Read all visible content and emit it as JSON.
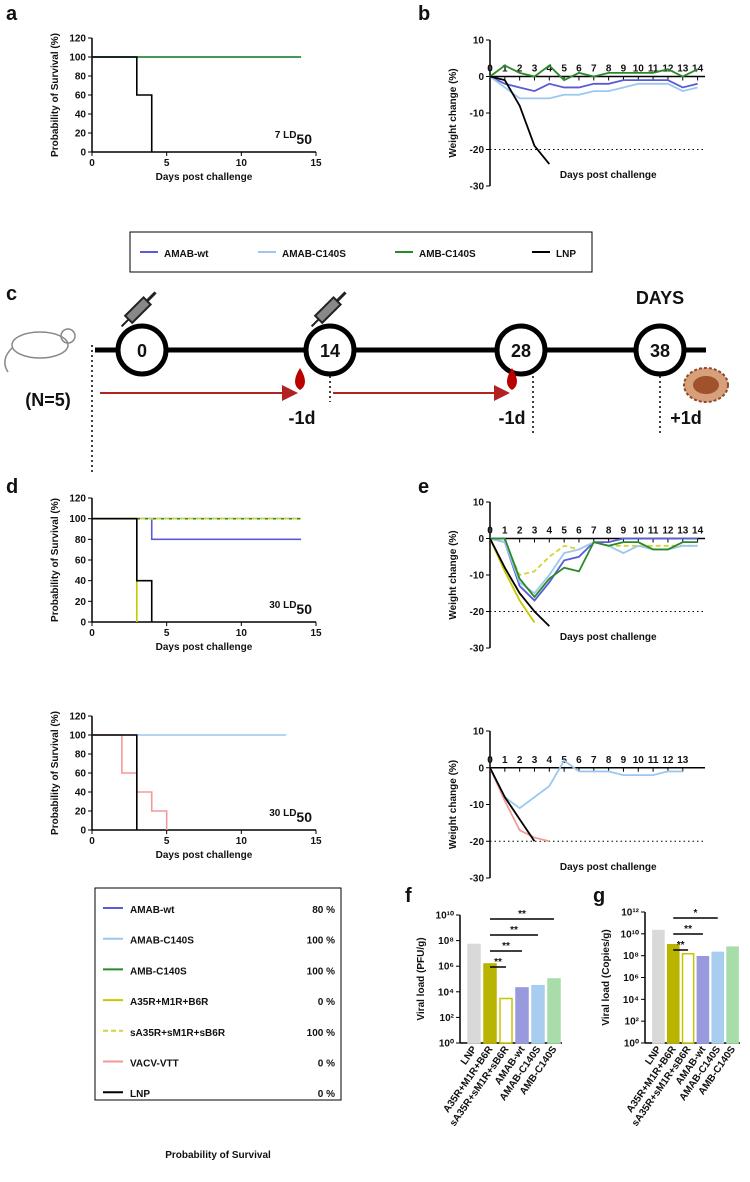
{
  "panel_labels": [
    "a",
    "b",
    "c",
    "d",
    "e",
    "f",
    "g"
  ],
  "chart_data": [
    {
      "type": "line",
      "step": true,
      "xlabel": "Days post challenge",
      "ylabel": "Probability of Survival (%)",
      "annotation": {
        "text": "7 LD",
        "sub": "50"
      },
      "x": [
        0,
        1,
        2,
        3,
        4,
        5,
        6,
        7,
        8,
        9,
        10,
        11,
        12,
        13,
        14
      ],
      "xlim": [
        0,
        15
      ],
      "xticks": [
        0,
        5,
        10,
        15
      ],
      "ylim": [
        0,
        120
      ],
      "yticks": [
        0,
        20,
        40,
        60,
        80,
        100,
        120
      ],
      "series": [
        {
          "name": "AMAB-wt",
          "color": "#5b5bd6",
          "values": [
            100,
            100,
            100,
            100,
            100,
            100,
            100,
            100,
            100,
            100,
            100,
            100,
            100,
            100,
            100
          ]
        },
        {
          "name": "AMAB-C140S",
          "color": "#9cc8f0",
          "values": [
            100,
            100,
            100,
            100,
            100,
            100,
            100,
            100,
            100,
            100,
            100,
            100,
            100,
            100,
            100
          ]
        },
        {
          "name": "AMB-C140S",
          "color": "#2a8a2a",
          "values": [
            100,
            100,
            100,
            100,
            100,
            100,
            100,
            100,
            100,
            100,
            100,
            100,
            100,
            100,
            100
          ]
        },
        {
          "name": "LNP",
          "color": "#000000",
          "values": [
            100,
            100,
            100,
            60,
            0,
            null,
            null,
            null,
            null,
            null,
            null,
            null,
            null,
            null,
            null
          ]
        }
      ]
    },
    {
      "type": "line",
      "xlabel": "Days post challenge",
      "ylabel": "Weight change (%)",
      "hline": -20,
      "x": [
        0,
        1,
        2,
        3,
        4,
        5,
        6,
        7,
        8,
        9,
        10,
        11,
        12,
        13,
        14
      ],
      "xlim": [
        0,
        14.5
      ],
      "xticks": [
        0,
        1,
        2,
        3,
        4,
        5,
        6,
        7,
        8,
        9,
        10,
        11,
        12,
        13,
        14
      ],
      "ylim": [
        -30,
        10
      ],
      "yticks": [
        -30,
        -20,
        -10,
        0,
        10
      ],
      "series": [
        {
          "name": "AMAB-wt",
          "color": "#5b5bd6",
          "values": [
            0,
            -2,
            -3,
            -4,
            -2,
            -3,
            -3,
            -2,
            -2,
            -1,
            -1,
            -1,
            -1,
            -3,
            -2
          ]
        },
        {
          "name": "AMAB-C140S",
          "color": "#9cc8f0",
          "values": [
            0,
            -3,
            -6,
            -6,
            -6,
            -5,
            -5,
            -4,
            -4,
            -3,
            -2,
            -2,
            -2,
            -4,
            -3
          ]
        },
        {
          "name": "AMB-C140S",
          "color": "#2a8a2a",
          "values": [
            0,
            3,
            1,
            0,
            3,
            -1,
            1,
            0,
            1,
            1,
            1,
            1,
            2,
            0,
            2
          ]
        },
        {
          "name": "LNP",
          "color": "#000000",
          "values": [
            0,
            -1,
            -8,
            -19,
            -24,
            null,
            null,
            null,
            null,
            null,
            null,
            null,
            null,
            null,
            null
          ]
        }
      ]
    },
    {
      "type": "line",
      "step": true,
      "xlabel": "Days post challenge",
      "ylabel": "Probability of Survival (%)",
      "annotation": {
        "text": "30 LD",
        "sub": "50"
      },
      "x": [
        0,
        1,
        2,
        3,
        4,
        5,
        6,
        7,
        8,
        9,
        10,
        11,
        12,
        13,
        14
      ],
      "xlim": [
        0,
        15
      ],
      "xticks": [
        0,
        5,
        10,
        15
      ],
      "ylim": [
        0,
        120
      ],
      "yticks": [
        0,
        20,
        40,
        60,
        80,
        100,
        120
      ],
      "series": [
        {
          "name": "AMAB-wt",
          "color": "#5b5bd6",
          "values": [
            100,
            100,
            100,
            100,
            80,
            80,
            80,
            80,
            80,
            80,
            80,
            80,
            80,
            80,
            80
          ]
        },
        {
          "name": "AMAB-C140S",
          "color": "#9cc8f0",
          "values": [
            100,
            100,
            100,
            100,
            100,
            100,
            100,
            100,
            100,
            100,
            100,
            100,
            100,
            100,
            100
          ]
        },
        {
          "name": "AMB-C140S",
          "color": "#2a8a2a",
          "values": [
            100,
            100,
            100,
            100,
            100,
            100,
            100,
            100,
            100,
            100,
            100,
            100,
            100,
            100,
            100
          ]
        },
        {
          "name": "sA35R+sM1R+sB6R",
          "color": "#d4d43a",
          "dash": true,
          "values": [
            100,
            100,
            100,
            100,
            100,
            100,
            100,
            100,
            100,
            100,
            100,
            100,
            100,
            100,
            100
          ]
        },
        {
          "name": "A35R+M1R+B6R",
          "color": "#c8c800",
          "values": [
            100,
            100,
            100,
            0,
            null,
            null,
            null,
            null,
            null,
            null,
            null,
            null,
            null,
            null,
            null
          ]
        },
        {
          "name": "LNP",
          "color": "#000000",
          "values": [
            100,
            100,
            100,
            40,
            0,
            null,
            null,
            null,
            null,
            null,
            null,
            null,
            null,
            null,
            null
          ]
        }
      ]
    },
    {
      "type": "line",
      "step": true,
      "xlabel": "Days post challenge",
      "ylabel": "Probability of Survival (%)",
      "annotation": {
        "text": "30 LD",
        "sub": "50"
      },
      "x": [
        0,
        1,
        2,
        3,
        4,
        5,
        6,
        7,
        8,
        9,
        10,
        11,
        12,
        13,
        14
      ],
      "xlim": [
        0,
        15
      ],
      "xticks": [
        0,
        5,
        10,
        15
      ],
      "ylim": [
        0,
        120
      ],
      "yticks": [
        0,
        20,
        40,
        60,
        80,
        100,
        120
      ],
      "series": [
        {
          "name": "AMAB-C140S",
          "color": "#9cc8f0",
          "values": [
            100,
            100,
            100,
            100,
            100,
            100,
            100,
            100,
            100,
            100,
            100,
            100,
            100,
            100,
            null
          ]
        },
        {
          "name": "VACV-VTT",
          "color": "#f29a9a",
          "values": [
            100,
            100,
            60,
            40,
            20,
            0,
            null,
            null,
            null,
            null,
            null,
            null,
            null,
            null,
            null
          ]
        },
        {
          "name": "LNP",
          "color": "#000000",
          "values": [
            100,
            100,
            100,
            0,
            null,
            null,
            null,
            null,
            null,
            null,
            null,
            null,
            null,
            null,
            null
          ]
        }
      ]
    },
    {
      "type": "line",
      "xlabel": "Days post challenge",
      "ylabel": "Weight change (%)",
      "hline": -20,
      "x": [
        0,
        1,
        2,
        3,
        4,
        5,
        6,
        7,
        8,
        9,
        10,
        11,
        12,
        13,
        14
      ],
      "xlim": [
        0,
        14.5
      ],
      "xticks": [
        0,
        1,
        2,
        3,
        4,
        5,
        6,
        7,
        8,
        9,
        10,
        11,
        12,
        13,
        14
      ],
      "ylim": [
        -30,
        10
      ],
      "yticks": [
        -30,
        -20,
        -10,
        0,
        10
      ],
      "series": [
        {
          "name": "sA35R+sM1R+sB6R",
          "color": "#d4d43a",
          "dash": true,
          "values": [
            0,
            -1,
            -10,
            -9,
            -5,
            -2,
            -3,
            -1,
            -2,
            -2,
            -2,
            -2,
            -2,
            -2,
            -2
          ]
        },
        {
          "name": "AMAB-wt",
          "color": "#5b5bd6",
          "values": [
            0,
            -1,
            -13,
            -17,
            -12,
            -6,
            -5,
            -1,
            -1,
            0,
            0,
            0,
            0,
            0,
            0
          ]
        },
        {
          "name": "AMAB-C140S",
          "color": "#9cc8f0",
          "values": [
            0,
            -1,
            -12,
            -15,
            -10,
            -4,
            -3,
            -1,
            -2,
            -4,
            -2,
            -3,
            -3,
            -2,
            -2
          ]
        },
        {
          "name": "AMB-C140S",
          "color": "#2a8a2a",
          "values": [
            0,
            0,
            -11,
            -16,
            -11,
            -8,
            -9,
            -1,
            -2,
            -1,
            -1,
            -3,
            -3,
            -1,
            -1
          ]
        },
        {
          "name": "A35R+M1R+B6R",
          "color": "#c8c800",
          "values": [
            0,
            -9,
            -17,
            -23,
            null,
            null,
            null,
            null,
            null,
            null,
            null,
            null,
            null,
            null,
            null
          ]
        },
        {
          "name": "LNP",
          "color": "#000000",
          "values": [
            0,
            -8,
            -15,
            -20,
            -24,
            null,
            null,
            null,
            null,
            null,
            null,
            null,
            null,
            null,
            null
          ]
        }
      ]
    },
    {
      "type": "line",
      "xlabel": "Days post challenge",
      "ylabel": "Weight change (%)",
      "hline": -20,
      "x": [
        0,
        1,
        2,
        3,
        4,
        5,
        6,
        7,
        8,
        9,
        10,
        11,
        12,
        13
      ],
      "xlim": [
        0,
        14.5
      ],
      "xticks": [
        0,
        1,
        2,
        3,
        4,
        5,
        6,
        7,
        8,
        9,
        10,
        11,
        12,
        13
      ],
      "ylim": [
        -30,
        10
      ],
      "yticks": [
        -30,
        -20,
        -10,
        0,
        10
      ],
      "series": [
        {
          "name": "AMAB-C140S",
          "color": "#9cc8f0",
          "values": [
            0,
            -8,
            -11,
            -8,
            -5,
            2,
            -1,
            -1,
            -1,
            -2,
            -2,
            -2,
            -1,
            -1
          ]
        },
        {
          "name": "VACV-VTT",
          "color": "#f29a9a",
          "values": [
            0,
            -9,
            -17,
            -19,
            -20,
            null,
            null,
            null,
            null,
            null,
            null,
            null,
            null,
            null
          ]
        },
        {
          "name": "LNP",
          "color": "#000000",
          "values": [
            0,
            -8,
            -14,
            -20,
            null,
            null,
            null,
            null,
            null,
            null,
            null,
            null,
            null,
            null
          ]
        }
      ]
    },
    {
      "type": "bar",
      "yscale": "log",
      "ylabel": "Viral load (PFU/g)",
      "categories": [
        "LNP",
        "A35R+M1R+B6R",
        "sA35R+sM1R+sB6R",
        "AMAB-wt",
        "AMAB-C140S",
        "AMB-C140S"
      ],
      "values": [
        50000000,
        1500000,
        3000,
        20000,
        30000,
        100000
      ],
      "colors": [
        "#d9d9d9",
        "#b8b400",
        "#ffffff",
        "#9999dd",
        "#a8cdee",
        "#a8dca8"
      ],
      "edge_colors": [
        "#d9d9d9",
        "#b8b400",
        "#c8c400",
        "#9999dd",
        "#a8cdee",
        "#a8dca8"
      ],
      "ylim": [
        1,
        10000000000
      ],
      "yticks": [
        {
          "value": 1,
          "label": "10⁰"
        },
        {
          "value": 100,
          "label": "10²"
        },
        {
          "value": 10000,
          "label": "10⁴"
        },
        {
          "value": 1000000,
          "label": "10⁶"
        },
        {
          "value": 100000000,
          "label": "10⁸"
        },
        {
          "value": 10000000000,
          "label": "10¹⁰"
        }
      ],
      "brackets": [
        {
          "from": 1,
          "to": 2,
          "label": "**"
        },
        {
          "from": 1,
          "to": 3,
          "label": "**"
        },
        {
          "from": 1,
          "to": 4,
          "label": "**"
        },
        {
          "from": 1,
          "to": 5,
          "label": "**"
        }
      ]
    },
    {
      "type": "bar",
      "yscale": "log",
      "ylabel": "Viral load (Copies/g)",
      "categories": [
        "LNP",
        "A35R+M1R+B6R",
        "sA35R+sM1R+sB6R",
        "AMAB-wt",
        "AMAB-C140S",
        "AMB-C140S"
      ],
      "values": [
        20000000000,
        1000000000,
        150000000,
        80000000,
        200000000,
        600000000
      ],
      "colors": [
        "#d9d9d9",
        "#b8b400",
        "#ffffff",
        "#9999dd",
        "#a8cdee",
        "#a8dca8"
      ],
      "edge_colors": [
        "#d9d9d9",
        "#b8b400",
        "#c8c400",
        "#9999dd",
        "#a8cdee",
        "#a8dca8"
      ],
      "ylim": [
        1,
        1000000000000
      ],
      "yticks": [
        {
          "value": 1,
          "label": "10⁰"
        },
        {
          "value": 100,
          "label": "10²"
        },
        {
          "value": 10000,
          "label": "10⁴"
        },
        {
          "value": 1000000,
          "label": "10⁶"
        },
        {
          "value": 100000000,
          "label": "10⁸"
        },
        {
          "value": 10000000000,
          "label": "10¹⁰"
        },
        {
          "value": 1000000000000,
          "label": "10¹²"
        }
      ],
      "brackets": [
        {
          "from": 1,
          "to": 2,
          "label": "**"
        },
        {
          "from": 1,
          "to": 3,
          "label": "**"
        },
        {
          "from": 1,
          "to": 4,
          "label": "*"
        }
      ]
    }
  ],
  "legends": [
    {
      "entries": [
        {
          "name": "AMAB-wt",
          "color": "#5b5bd6"
        },
        {
          "name": "AMAB-C140S",
          "color": "#9cc8f0"
        },
        {
          "name": "AMB-C140S",
          "color": "#2a8a2a"
        },
        {
          "name": "LNP",
          "color": "#000000"
        }
      ]
    },
    {
      "title": "Probability of Survival",
      "entries": [
        {
          "name": "AMAB-wt",
          "color": "#5b5bd6",
          "pct": "80 %"
        },
        {
          "name": "AMAB-C140S",
          "color": "#9cc8f0",
          "pct": "100 %"
        },
        {
          "name": "AMB-C140S",
          "color": "#2a8a2a",
          "pct": "100 %"
        },
        {
          "name": "A35R+M1R+B6R",
          "color": "#c8c800",
          "pct": "0 %"
        },
        {
          "name": "sA35R+sM1R+sB6R",
          "color": "#d4d43a",
          "dash": true,
          "pct": "100 %"
        },
        {
          "name": "VACV-VTT",
          "color": "#f29a9a",
          "pct": "0 %"
        },
        {
          "name": "LNP",
          "color": "#000000",
          "pct": "0 %"
        }
      ]
    }
  ],
  "timeline": {
    "days": [
      "0",
      "14",
      "28",
      "38"
    ],
    "unit": "DAYS",
    "group": "(N=5)",
    "bleeds": [
      "-1d",
      "-1d"
    ],
    "harvest": "+1d"
  }
}
